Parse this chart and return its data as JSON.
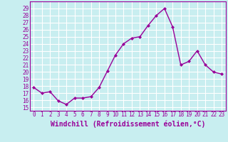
{
  "x": [
    0,
    1,
    2,
    3,
    4,
    5,
    6,
    7,
    8,
    9,
    10,
    11,
    12,
    13,
    14,
    15,
    16,
    17,
    18,
    19,
    20,
    21,
    22,
    23
  ],
  "y": [
    17.8,
    17.0,
    17.2,
    15.9,
    15.4,
    16.3,
    16.3,
    16.5,
    17.8,
    20.1,
    22.4,
    24.0,
    24.8,
    25.0,
    26.6,
    28.0,
    29.0,
    26.4,
    21.0,
    21.5,
    23.0,
    21.0,
    20.0,
    19.7
  ],
  "line_color": "#990099",
  "marker": "D",
  "markersize": 2,
  "linewidth": 1.0,
  "bg_color": "#c8eef0",
  "grid_color": "#ffffff",
  "xlabel": "Windchill (Refroidissement éolien,°C)",
  "xlabel_fontsize": 7,
  "ylim": [
    14.5,
    30.0
  ],
  "xlim": [
    -0.5,
    23.5
  ],
  "yticks": [
    15,
    16,
    17,
    18,
    19,
    20,
    21,
    22,
    23,
    24,
    25,
    26,
    27,
    28,
    29
  ],
  "xticks": [
    0,
    1,
    2,
    3,
    4,
    5,
    6,
    7,
    8,
    9,
    10,
    11,
    12,
    13,
    14,
    15,
    16,
    17,
    18,
    19,
    20,
    21,
    22,
    23
  ],
  "tick_fontsize": 5.5,
  "spine_color": "#990099"
}
